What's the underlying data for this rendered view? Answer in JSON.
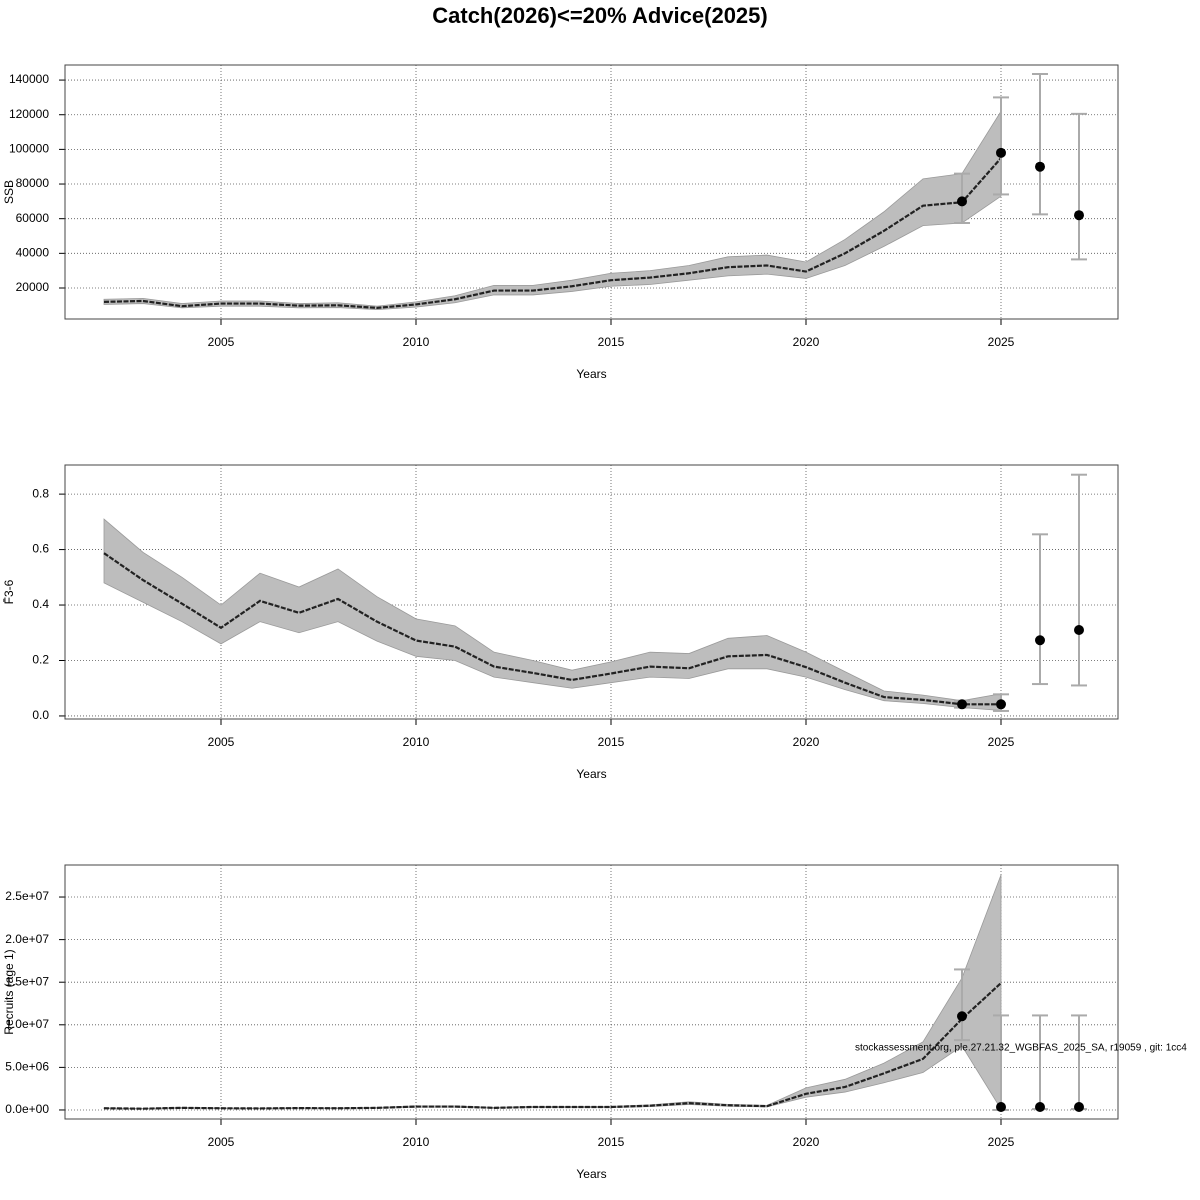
{
  "chart_data": [
    {
      "type": "line",
      "title": "Catch(2026)<=20% Advice(2025)",
      "ylabel": "SSB",
      "xlabel": "Years",
      "xlim": [
        2001,
        2028
      ],
      "xticks": [
        2005,
        2010,
        2015,
        2020,
        2025
      ],
      "ylim": [
        2100,
        148700
      ],
      "yticks": [
        20000,
        40000,
        60000,
        80000,
        100000,
        120000,
        140000
      ],
      "grid": true,
      "x": [
        2002,
        2003,
        2004,
        2005,
        2006,
        2007,
        2008,
        2009,
        2010,
        2011,
        2012,
        2013,
        2014,
        2015,
        2016,
        2017,
        2018,
        2019,
        2020,
        2021,
        2022,
        2023,
        2024,
        2025
      ],
      "values": [
        12000,
        12500,
        9500,
        11000,
        11000,
        9800,
        10000,
        8500,
        10500,
        13500,
        18500,
        18500,
        21000,
        24500,
        26000,
        28500,
        32000,
        33000,
        29500,
        40000,
        53000,
        67500,
        69500,
        95000
      ],
      "lower": [
        10500,
        11000,
        8500,
        9500,
        9500,
        8500,
        8700,
        7500,
        9000,
        11500,
        16000,
        16000,
        18000,
        21000,
        22000,
        24500,
        27000,
        28000,
        25500,
        33000,
        44000,
        56000,
        57500,
        73000
      ],
      "upper": [
        13500,
        14000,
        11000,
        12500,
        12500,
        11000,
        11500,
        9500,
        12000,
        15500,
        21500,
        21500,
        24500,
        28500,
        30000,
        33000,
        38000,
        39000,
        35000,
        48000,
        64000,
        83000,
        86000,
        122000
      ],
      "points": {
        "x": [
          2024,
          2025,
          2026,
          2027
        ],
        "values": [
          70000,
          98000,
          90000,
          62000
        ],
        "low": [
          57500,
          74000,
          62500,
          36500
        ],
        "high": [
          86000,
          130000,
          143500,
          120500
        ]
      }
    },
    {
      "type": "line",
      "ylabel": "F̄3-6",
      "xlabel": "Years",
      "xlim": [
        2001,
        2028
      ],
      "xticks": [
        2005,
        2010,
        2015,
        2020,
        2025
      ],
      "ylim": [
        -0.011,
        0.905
      ],
      "yticks": [
        {
          "value": 0,
          "label": "0.0"
        },
        0.2,
        0.4,
        0.6,
        0.8
      ],
      "grid": true,
      "x": [
        2002,
        2003,
        2004,
        2005,
        2006,
        2007,
        2008,
        2009,
        2010,
        2011,
        2012,
        2013,
        2014,
        2015,
        2016,
        2017,
        2018,
        2019,
        2020,
        2021,
        2022,
        2023,
        2024,
        2025
      ],
      "values": [
        0.587,
        0.49,
        0.405,
        0.318,
        0.415,
        0.372,
        0.422,
        0.34,
        0.272,
        0.25,
        0.178,
        0.155,
        0.13,
        0.153,
        0.178,
        0.172,
        0.215,
        0.22,
        0.176,
        0.12,
        0.068,
        0.058,
        0.042,
        0.042
      ],
      "lower": [
        0.48,
        0.41,
        0.34,
        0.26,
        0.34,
        0.3,
        0.34,
        0.27,
        0.215,
        0.2,
        0.14,
        0.12,
        0.1,
        0.12,
        0.14,
        0.135,
        0.17,
        0.17,
        0.14,
        0.095,
        0.055,
        0.045,
        0.03,
        0.02
      ],
      "upper": [
        0.71,
        0.59,
        0.5,
        0.4,
        0.515,
        0.465,
        0.53,
        0.43,
        0.35,
        0.325,
        0.23,
        0.2,
        0.165,
        0.195,
        0.23,
        0.225,
        0.28,
        0.29,
        0.23,
        0.16,
        0.09,
        0.075,
        0.055,
        0.08
      ],
      "points": {
        "x": [
          2024,
          2025,
          2026,
          2027
        ],
        "values": [
          0.042,
          0.042,
          0.273,
          0.31
        ],
        "low": [
          0.03,
          0.018,
          0.115,
          0.11
        ],
        "high": [
          0.055,
          0.078,
          0.655,
          0.87
        ]
      }
    },
    {
      "type": "line",
      "ylabel": "Recruits (age 1)",
      "xlabel": "Years",
      "annotation": "stockassessment.org, ple.27.21.32_WGBFAS_2025_SA, r19059 , git: 1cc4",
      "xlim": [
        2001,
        2028
      ],
      "xticks": [
        2005,
        2010,
        2015,
        2020,
        2025
      ],
      "ylim": [
        -1060000,
        28760000
      ],
      "yticks": [
        {
          "value": 0,
          "label": "0.0e+00"
        },
        {
          "value": 5000000,
          "label": "5.0e+06"
        },
        {
          "value": 10000000,
          "label": "1.0e+07"
        },
        {
          "value": 15000000,
          "label": "1.5e+07"
        },
        {
          "value": 20000000,
          "label": "2.0e+07"
        },
        {
          "value": 25000000,
          "label": "2.5e+07"
        }
      ],
      "grid": true,
      "x": [
        2002,
        2003,
        2004,
        2005,
        2006,
        2007,
        2008,
        2009,
        2010,
        2011,
        2012,
        2013,
        2014,
        2015,
        2016,
        2017,
        2018,
        2019,
        2020,
        2021,
        2022,
        2023,
        2024,
        2025
      ],
      "values": [
        200000,
        150000,
        250000,
        200000,
        180000,
        220000,
        200000,
        250000,
        400000,
        400000,
        250000,
        350000,
        350000,
        350000,
        500000,
        800000,
        550000,
        450000,
        1900000,
        2700000,
        4300000,
        6000000,
        10700000,
        14900000
      ],
      "lower": [
        160000,
        120000,
        200000,
        160000,
        145000,
        175000,
        160000,
        200000,
        320000,
        320000,
        200000,
        280000,
        280000,
        280000,
        400000,
        640000,
        440000,
        360000,
        1500000,
        2100000,
        3200000,
        4400000,
        7500000,
        100000
      ],
      "upper": [
        240000,
        180000,
        300000,
        240000,
        215000,
        265000,
        240000,
        300000,
        480000,
        480000,
        300000,
        420000,
        420000,
        420000,
        600000,
        960000,
        660000,
        540000,
        2600000,
        3600000,
        5500000,
        8000000,
        15500000,
        27600000
      ],
      "points": {
        "x": [
          2024,
          2025,
          2026,
          2027
        ],
        "values": [
          11000000,
          350000,
          350000,
          350000
        ],
        "low": [
          8200000,
          0,
          100000,
          100000
        ],
        "high": [
          16500000,
          11100000,
          11100000,
          11100000
        ]
      }
    }
  ]
}
